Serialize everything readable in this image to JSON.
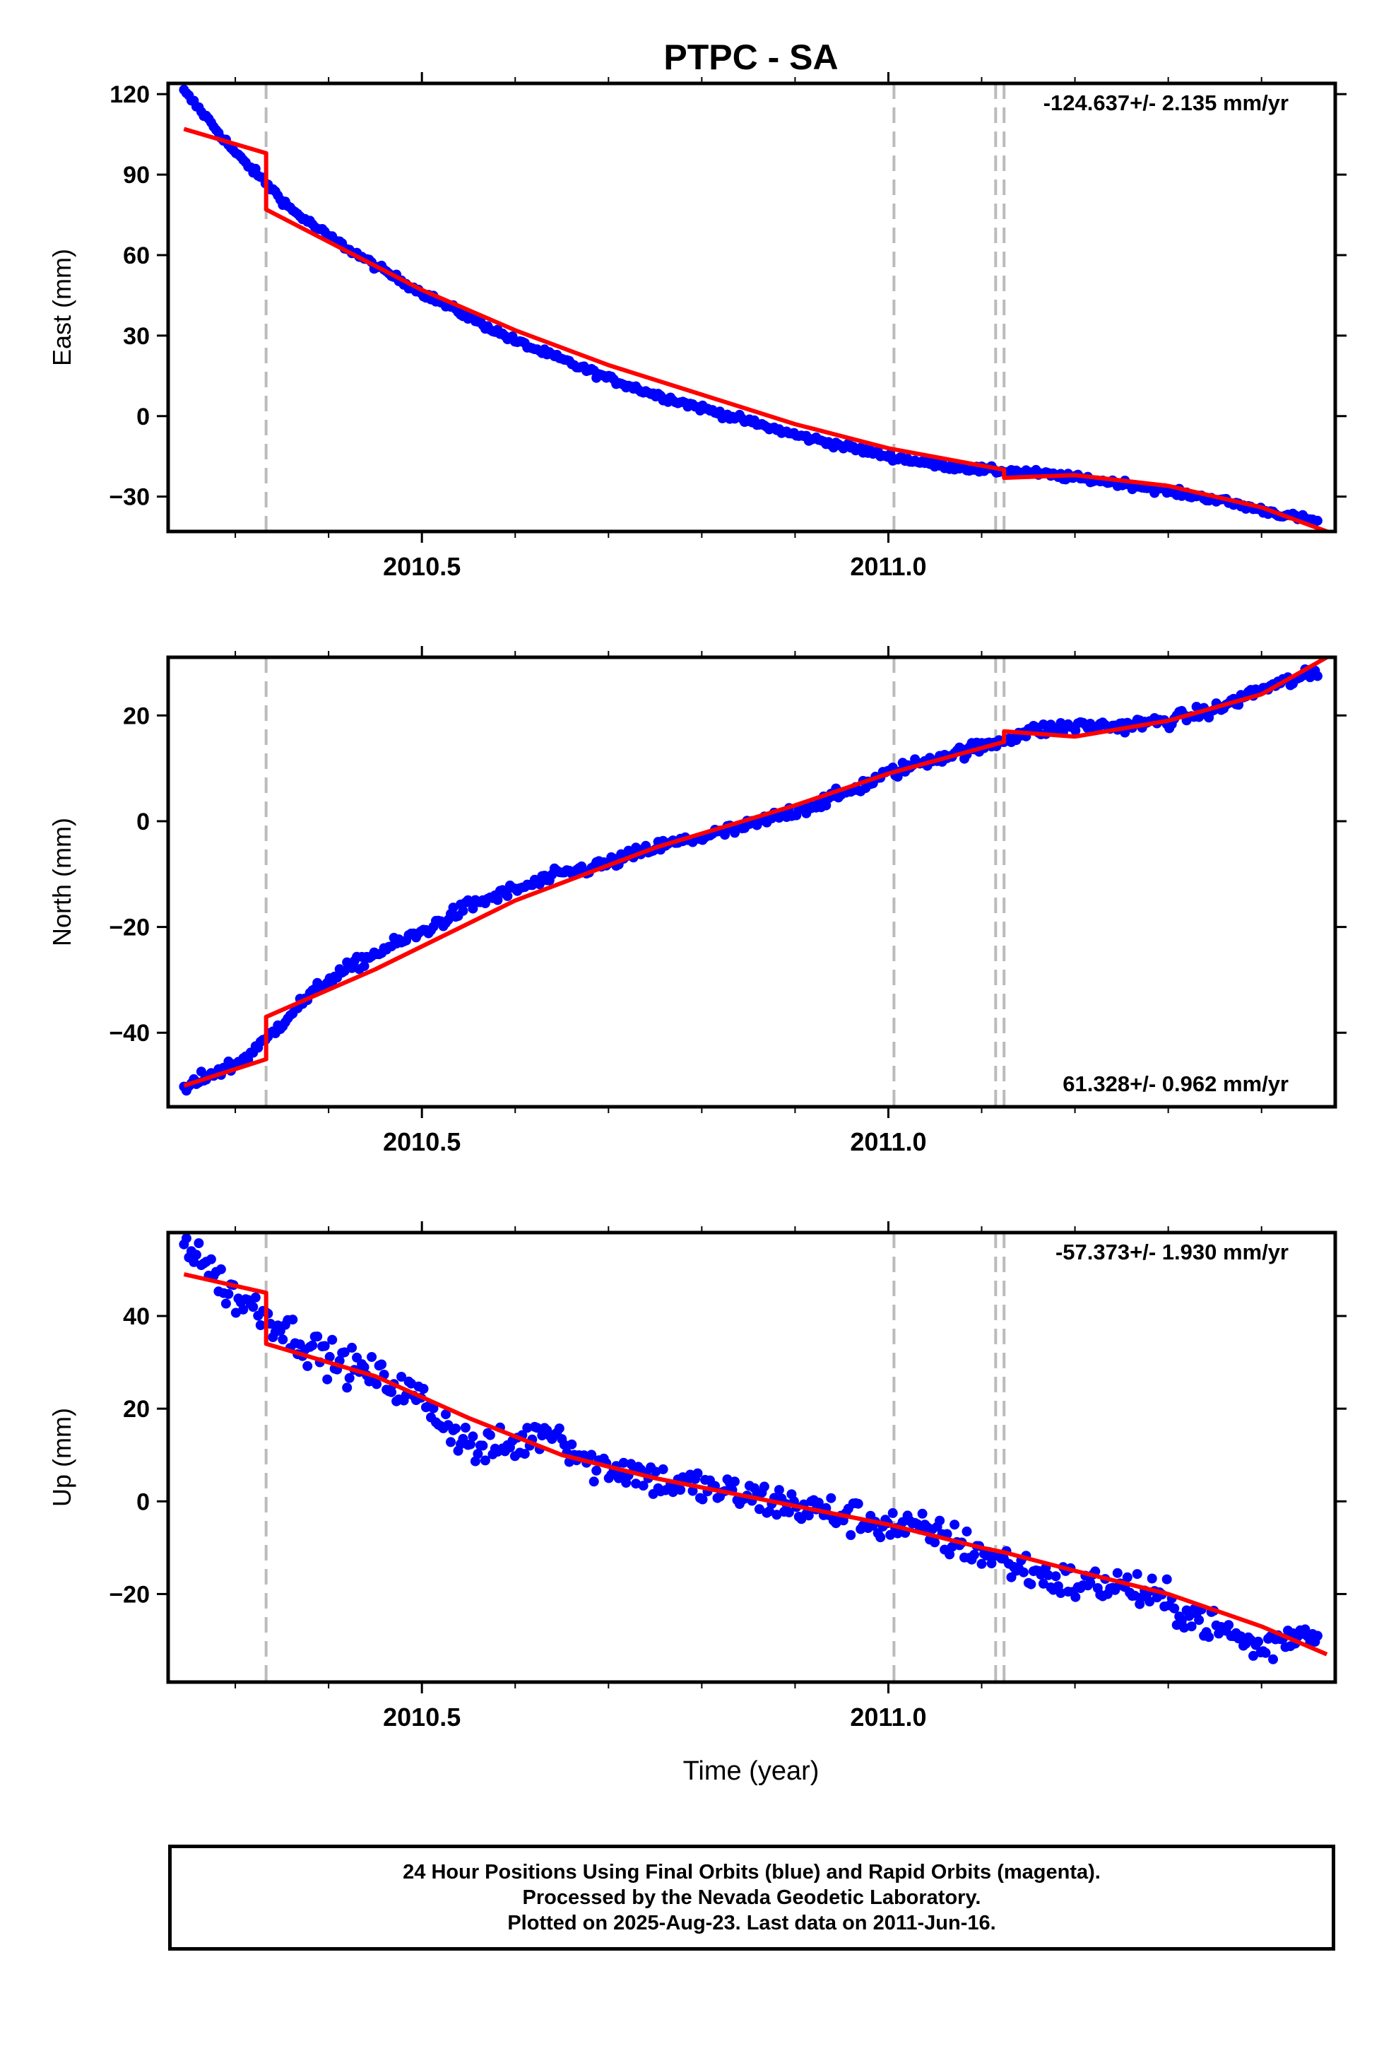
{
  "title": "PTPC - SA",
  "xlabel": "Time (year)",
  "x_ticks": [
    {
      "value": 2010.5,
      "label": "2010.5"
    },
    {
      "value": 2011.0,
      "label": "2011.0"
    }
  ],
  "x_minor_ticks": [
    2010.3,
    2010.4,
    2010.6,
    2010.7,
    2010.8,
    2010.9,
    2011.1,
    2011.2,
    2011.3,
    2011.4
  ],
  "xlim": [
    2010.228,
    2011.479
  ],
  "event_lines": [
    2010.333,
    2011.006,
    2011.115,
    2011.124
  ],
  "colors": {
    "points": "#0000ff",
    "fit": "#ff0000",
    "event": "#bbbbbb",
    "frame": "#000000"
  },
  "chart_data": [
    {
      "type": "scatter",
      "ylabel": "East (mm)",
      "ylim": [
        -43,
        124
      ],
      "y_ticks": [
        {
          "value": 120,
          "label": "120"
        },
        {
          "value": 90,
          "label": "90"
        },
        {
          "value": 60,
          "label": "60"
        },
        {
          "value": 30,
          "label": "30"
        },
        {
          "value": 0,
          "label": "0"
        },
        {
          "value": -30,
          "label": "−30"
        }
      ],
      "rate_label": "-124.637+/- 2.135 mm/yr",
      "rate_position": "top-right",
      "series": [
        {
          "kind": "points",
          "x": [
            2010.245,
            2010.27,
            2010.3,
            2010.33,
            2010.36,
            2010.4,
            2010.45,
            2010.5,
            2010.55,
            2010.6,
            2010.65,
            2010.7,
            2010.75,
            2010.8,
            2010.85,
            2010.9,
            2010.95,
            2011.0,
            2011.05,
            2011.1,
            2011.15,
            2011.2,
            2011.25,
            2011.3,
            2011.35,
            2011.4,
            2011.44,
            2011.46
          ],
          "y": [
            121,
            111,
            98,
            88,
            77,
            67,
            56,
            46,
            37,
            28,
            21,
            14,
            8,
            3,
            -2,
            -7,
            -11,
            -15,
            -18,
            -20,
            -21,
            -23,
            -25,
            -28,
            -31,
            -35,
            -38,
            -39
          ]
        },
        {
          "kind": "fit",
          "x": [
            2010.245,
            2010.333,
            2010.333,
            2010.5,
            2010.6,
            2010.7,
            2010.8,
            2010.9,
            2011.0,
            2011.124,
            2011.124,
            2011.2,
            2011.3,
            2011.4,
            2011.47
          ],
          "y": [
            107,
            98,
            77,
            47,
            32,
            19,
            8,
            -3,
            -12,
            -20,
            -23,
            -22,
            -26,
            -34,
            -43
          ]
        }
      ]
    },
    {
      "type": "scatter",
      "ylabel": "North (mm)",
      "ylim": [
        -54,
        31
      ],
      "y_ticks": [
        {
          "value": 20,
          "label": "20"
        },
        {
          "value": 0,
          "label": "0"
        },
        {
          "value": -20,
          "label": "−20"
        },
        {
          "value": -40,
          "label": "−40"
        }
      ],
      "rate_label": "61.328+/- 0.962 mm/yr",
      "rate_position": "bottom-right",
      "series": [
        {
          "kind": "points",
          "x": [
            2010.245,
            2010.27,
            2010.3,
            2010.33,
            2010.36,
            2010.4,
            2010.45,
            2010.5,
            2010.55,
            2010.6,
            2010.65,
            2010.7,
            2010.75,
            2010.8,
            2010.85,
            2010.9,
            2010.95,
            2011.0,
            2011.05,
            2011.1,
            2011.15,
            2011.2,
            2011.25,
            2011.3,
            2011.35,
            2011.4,
            2011.44,
            2011.46
          ],
          "y": [
            -51,
            -48,
            -46,
            -42,
            -36,
            -30,
            -25,
            -21,
            -16,
            -13,
            -10,
            -8,
            -5,
            -3,
            -1,
            2,
            5,
            9,
            12,
            14,
            17,
            18,
            18,
            19,
            21,
            25,
            27,
            28
          ]
        },
        {
          "kind": "fit",
          "x": [
            2010.245,
            2010.333,
            2010.333,
            2010.45,
            2010.6,
            2010.75,
            2010.9,
            2011.0,
            2011.124,
            2011.124,
            2011.2,
            2011.3,
            2011.4,
            2011.47
          ],
          "y": [
            -50,
            -45,
            -37,
            -28,
            -15,
            -5,
            3,
            9,
            15,
            17,
            16,
            19,
            24,
            31
          ]
        }
      ]
    },
    {
      "type": "scatter",
      "ylabel": "Up (mm)",
      "ylim": [
        -39,
        58
      ],
      "y_ticks": [
        {
          "value": 40,
          "label": "40"
        },
        {
          "value": 20,
          "label": "20"
        },
        {
          "value": 0,
          "label": "0"
        },
        {
          "value": -20,
          "label": "−20"
        }
      ],
      "rate_label": "-57.373+/- 1.930 mm/yr",
      "rate_position": "top-right",
      "series": [
        {
          "kind": "points",
          "x": [
            2010.245,
            2010.26,
            2010.28,
            2010.3,
            2010.33,
            2010.36,
            2010.4,
            2010.45,
            2010.5,
            2010.53,
            2010.56,
            2010.6,
            2010.64,
            2010.68,
            2010.72,
            2010.76,
            2010.8,
            2010.85,
            2010.9,
            2010.95,
            2011.0,
            2011.05,
            2011.1,
            2011.15,
            2011.2,
            2011.25,
            2011.3,
            2011.35,
            2011.4,
            2011.44,
            2011.46
          ],
          "y": [
            56,
            54,
            48,
            44,
            41,
            36,
            31,
            27,
            22,
            16,
            11,
            12,
            16,
            8,
            7,
            4,
            3,
            1,
            -1,
            -3,
            -5,
            -7,
            -11,
            -15,
            -18,
            -18,
            -22,
            -27,
            -32,
            -28,
            -29
          ]
        },
        {
          "kind": "fit",
          "x": [
            2010.245,
            2010.333,
            2010.333,
            2010.45,
            2010.55,
            2010.65,
            2010.75,
            2010.9,
            2011.0,
            2011.1,
            2011.124,
            2011.2,
            2011.3,
            2011.4,
            2011.47
          ],
          "y": [
            49,
            45,
            34,
            27,
            18,
            10,
            5,
            -1,
            -5,
            -10,
            -11,
            -15,
            -20,
            -27,
            -33
          ]
        }
      ]
    }
  ],
  "footer": {
    "line1": "24 Hour Positions Using Final Orbits (blue) and Rapid Orbits (magenta).",
    "line2": "Processed by the Nevada Geodetic Laboratory.",
    "line3": "Plotted on 2025-Aug-23. Last data on 2011-Jun-16."
  }
}
